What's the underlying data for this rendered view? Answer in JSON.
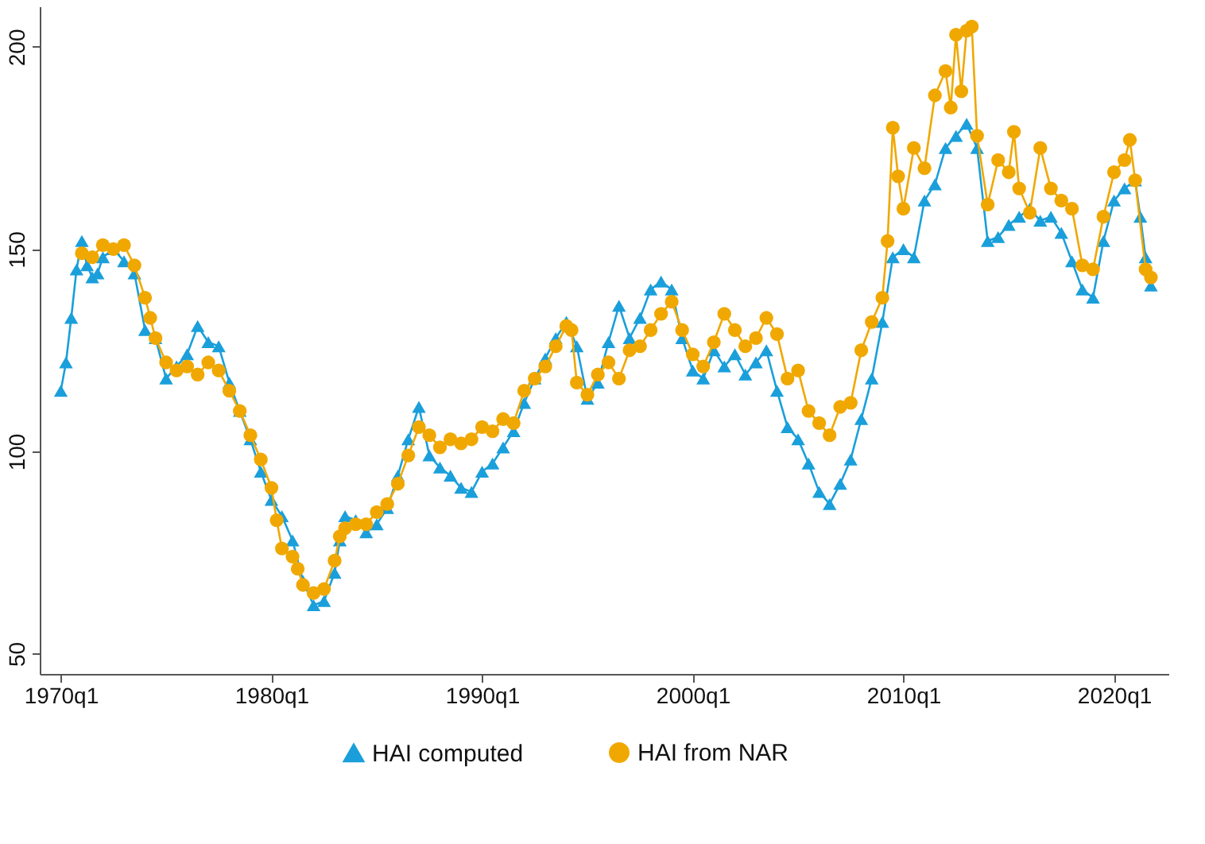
{
  "chart_data": {
    "type": "line",
    "xlim": [
      "1969-01",
      "2022-08"
    ],
    "ylim": [
      45,
      210
    ],
    "xticks": [
      {
        "value": "1970-01",
        "label": "1970q1"
      },
      {
        "value": "1980-01",
        "label": "1980q1"
      },
      {
        "value": "1990-01",
        "label": "1990q1"
      },
      {
        "value": "2000-01",
        "label": "2000q1"
      },
      {
        "value": "2010-01",
        "label": "2010q1"
      },
      {
        "value": "2020-01",
        "label": "2020q1"
      }
    ],
    "yticks": [
      50,
      100,
      150,
      200
    ],
    "grid": false,
    "legend": "bottom",
    "line_style": "solid",
    "series": [
      {
        "name": "HAI computed",
        "color": "#1a9fdb",
        "marker": "triangle",
        "x": [
          "1970-01",
          "1970-04",
          "1970-07",
          "1970-10",
          "1971-01",
          "1971-04",
          "1971-07",
          "1971-10",
          "1972-01",
          "1972-07",
          "1973-01",
          "1973-07",
          "1974-01",
          "1974-07",
          "1975-01",
          "1975-07",
          "1976-01",
          "1976-07",
          "1977-01",
          "1977-07",
          "1978-01",
          "1978-07",
          "1979-01",
          "1979-07",
          "1980-01",
          "1980-07",
          "1981-01",
          "1981-07",
          "1982-01",
          "1982-07",
          "1983-01",
          "1983-04",
          "1983-07",
          "1984-01",
          "1984-07",
          "1985-01",
          "1985-07",
          "1986-01",
          "1986-07",
          "1987-01",
          "1987-07",
          "1988-01",
          "1988-07",
          "1989-01",
          "1989-07",
          "1990-01",
          "1990-07",
          "1991-01",
          "1991-07",
          "1992-01",
          "1992-07",
          "1993-01",
          "1993-07",
          "1994-01",
          "1994-07",
          "1995-01",
          "1995-07",
          "1996-01",
          "1996-07",
          "1997-01",
          "1997-07",
          "1998-01",
          "1998-07",
          "1999-01",
          "1999-07",
          "2000-01",
          "2000-07",
          "2001-01",
          "2001-07",
          "2002-01",
          "2002-07",
          "2003-01",
          "2003-07",
          "2004-01",
          "2004-07",
          "2005-01",
          "2005-07",
          "2006-01",
          "2006-07",
          "2007-01",
          "2007-07",
          "2008-01",
          "2008-07",
          "2009-01",
          "2009-07",
          "2010-01",
          "2010-07",
          "2011-01",
          "2011-07",
          "2012-01",
          "2012-07",
          "2013-01",
          "2013-07",
          "2014-01",
          "2014-07",
          "2015-01",
          "2015-07",
          "2016-01",
          "2016-07",
          "2017-01",
          "2017-07",
          "2018-01",
          "2018-07",
          "2019-01",
          "2019-07",
          "2020-01",
          "2020-07",
          "2021-01",
          "2021-04",
          "2021-07",
          "2021-10"
        ],
        "values": [
          115,
          122,
          133,
          145,
          152,
          146,
          143,
          144,
          148,
          150,
          147,
          144,
          130,
          128,
          118,
          121,
          124,
          131,
          127,
          126,
          117,
          110,
          103,
          95,
          88,
          84,
          78,
          68,
          62,
          63,
          70,
          78,
          84,
          83,
          80,
          82,
          86,
          94,
          103,
          111,
          99,
          96,
          94,
          91,
          90,
          95,
          97,
          101,
          105,
          112,
          118,
          123,
          128,
          132,
          126,
          113,
          117,
          127,
          136,
          128,
          133,
          140,
          142,
          140,
          128,
          120,
          118,
          125,
          121,
          124,
          119,
          122,
          125,
          115,
          106,
          103,
          97,
          90,
          87,
          92,
          98,
          108,
          118,
          132,
          148,
          150,
          148,
          162,
          166,
          175,
          178,
          181,
          175,
          152,
          153,
          156,
          158,
          160,
          157,
          158,
          154,
          147,
          140,
          138,
          152,
          162,
          165,
          167,
          158,
          148,
          141
        ]
      },
      {
        "name": "HAI from NAR",
        "color": "#f0a800",
        "marker": "circle",
        "x": [
          "1971-01",
          "1971-07",
          "1972-01",
          "1972-07",
          "1973-01",
          "1973-07",
          "1974-01",
          "1974-04",
          "1974-07",
          "1975-01",
          "1975-07",
          "1976-01",
          "1976-07",
          "1977-01",
          "1977-07",
          "1978-01",
          "1978-07",
          "1979-01",
          "1979-07",
          "1980-01",
          "1980-04",
          "1980-07",
          "1981-01",
          "1981-04",
          "1981-07",
          "1982-01",
          "1982-07",
          "1983-01",
          "1983-04",
          "1983-07",
          "1984-01",
          "1984-07",
          "1985-01",
          "1985-07",
          "1986-01",
          "1986-07",
          "1987-01",
          "1987-07",
          "1988-01",
          "1988-07",
          "1989-01",
          "1989-07",
          "1990-01",
          "1990-07",
          "1991-01",
          "1991-07",
          "1992-01",
          "1992-07",
          "1993-01",
          "1993-07",
          "1994-01",
          "1994-04",
          "1994-07",
          "1995-01",
          "1995-07",
          "1996-01",
          "1996-07",
          "1997-01",
          "1997-07",
          "1998-01",
          "1998-07",
          "1999-01",
          "1999-07",
          "2000-01",
          "2000-07",
          "2001-01",
          "2001-07",
          "2002-01",
          "2002-07",
          "2003-01",
          "2003-07",
          "2004-01",
          "2004-07",
          "2005-01",
          "2005-07",
          "2006-01",
          "2006-07",
          "2007-01",
          "2007-07",
          "2008-01",
          "2008-07",
          "2009-01",
          "2009-04",
          "2009-07",
          "2009-10",
          "2010-01",
          "2010-07",
          "2011-01",
          "2011-07",
          "2012-01",
          "2012-04",
          "2012-07",
          "2012-10",
          "2013-01",
          "2013-04",
          "2013-07",
          "2014-01",
          "2014-07",
          "2015-01",
          "2015-04",
          "2015-07",
          "2016-01",
          "2016-07",
          "2017-01",
          "2017-07",
          "2018-01",
          "2018-07",
          "2019-01",
          "2019-07",
          "2020-01",
          "2020-07",
          "2020-10",
          "2021-01",
          "2021-07",
          "2021-10"
        ],
        "values": [
          149,
          148,
          151,
          150,
          151,
          146,
          138,
          133,
          128,
          122,
          120,
          121,
          119,
          122,
          120,
          115,
          110,
          104,
          98,
          91,
          83,
          76,
          74,
          71,
          67,
          65,
          66,
          73,
          79,
          81,
          82,
          82,
          85,
          87,
          92,
          99,
          106,
          104,
          101,
          103,
          102,
          103,
          106,
          105,
          108,
          107,
          115,
          118,
          121,
          126,
          131,
          130,
          117,
          114,
          119,
          122,
          118,
          125,
          126,
          130,
          134,
          137,
          130,
          124,
          121,
          127,
          134,
          130,
          126,
          128,
          133,
          129,
          118,
          120,
          110,
          107,
          104,
          111,
          112,
          125,
          132,
          138,
          152,
          180,
          168,
          160,
          175,
          170,
          188,
          194,
          185,
          203,
          189,
          204,
          205,
          178,
          161,
          172,
          169,
          179,
          165,
          159,
          175,
          165,
          162,
          160,
          146,
          145,
          158,
          169,
          172,
          177,
          167,
          145,
          143
        ]
      }
    ]
  }
}
